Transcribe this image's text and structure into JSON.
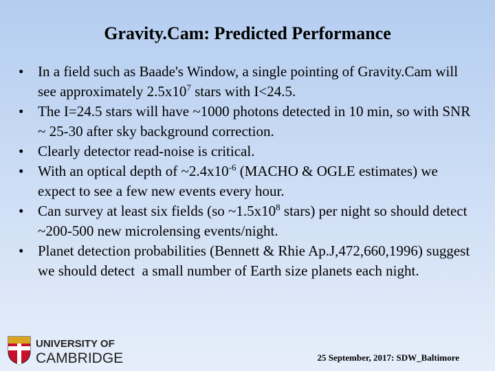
{
  "header": {
    "title": "Gravity.Cam: Predicted Performance"
  },
  "bullets": [
    [
      "In a field such as Baade's Window, a single pointing of Gravity.Cam will see approximately 2.5x10",
      "7",
      " stars with I<24.5."
    ],
    [
      "The I=24.5 stars will have ~1000 photons detected in 10 min, so with SNR ~ 25-30 after sky background correction."
    ],
    [
      "Clearly detector read-noise is critical."
    ],
    [
      "With an optical depth of ~2.4x10",
      "-6",
      " (MACHO & OGLE estimates) we expect to see a few new events every hour."
    ],
    [
      "Can survey at least six fields (so ~1.5x10",
      "8",
      " stars) per night so should detect ~200-500 new microlensing events/night."
    ],
    [
      "Planet detection probabilities (Bennett & Rhie Ap.J,472,660,1996) suggest we should detect  a small number of Earth size planets each night."
    ]
  ],
  "logo": {
    "line1": "UNIVERSITY OF",
    "line2": "CAMBRIDGE"
  },
  "footer": "25 September, 2017: SDW_Baltimore"
}
